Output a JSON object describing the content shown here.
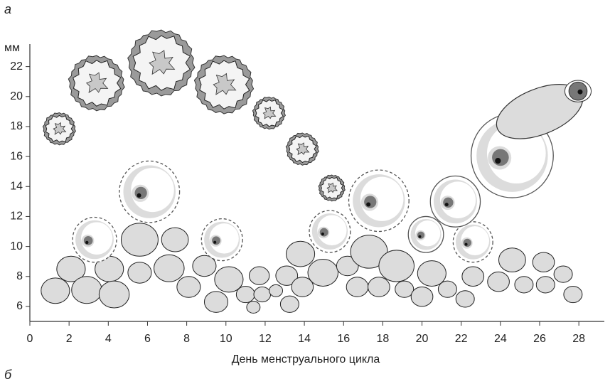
{
  "panel_top": "а",
  "panel_bottom": "б",
  "chart_data": {
    "type": "follicles",
    "ylabel": "мм",
    "xlabel": "День менструального цикла",
    "xlim": [
      0,
      29.3
    ],
    "ylim": [
      5,
      23.5
    ],
    "xticks": [
      0,
      2,
      4,
      6,
      8,
      10,
      12,
      14,
      16,
      18,
      20,
      22,
      24,
      26,
      28
    ],
    "yticks": [
      6,
      8,
      10,
      12,
      14,
      16,
      18,
      20,
      22
    ],
    "series": [
      {
        "shape": "small",
        "color": "#dcdcdc",
        "x": [
          1.3,
          2.1,
          2.9,
          4.05,
          4.3,
          5.6,
          5.6,
          7.1,
          7.4,
          8.1,
          8.9,
          9.5,
          10.15,
          11.0,
          11.7,
          11.85,
          11.4,
          12.55,
          13.1,
          13.25,
          13.9,
          13.8,
          14.95,
          16.2,
          16.7,
          17.3,
          17.8,
          18.7,
          19.1,
          20.0,
          20.5,
          21.3,
          22.2,
          22.6,
          23.9,
          24.6,
          25.2,
          26.2,
          26.3,
          27.2,
          27.7
        ],
        "values": [
          7.05,
          8.5,
          7.1,
          8.5,
          6.8,
          8.25,
          10.45,
          8.55,
          10.45,
          7.3,
          8.7,
          6.3,
          7.8,
          6.8,
          8.05,
          6.8,
          5.95,
          7.05,
          8.05,
          6.15,
          7.3,
          9.5,
          8.25,
          8.7,
          7.3,
          9.65,
          7.3,
          8.7,
          7.15,
          6.65,
          8.2,
          7.15,
          6.5,
          8.0,
          7.65,
          9.1,
          7.45,
          8.95,
          7.45,
          8.15,
          6.8
        ],
        "sizes": [
          1.7,
          1.7,
          1.8,
          1.7,
          1.8,
          1.4,
          2.2,
          1.8,
          1.6,
          1.4,
          1.4,
          1.4,
          1.7,
          1.1,
          1.2,
          1.0,
          0.8,
          0.8,
          1.3,
          1.1,
          1.3,
          1.7,
          1.8,
          1.3,
          1.3,
          2.2,
          1.3,
          2.1,
          1.1,
          1.3,
          1.7,
          1.1,
          1.1,
          1.3,
          1.3,
          1.6,
          1.1,
          1.3,
          1.1,
          1.1,
          1.1
        ]
      },
      {
        "shape": "antral-dashed",
        "color": "#dcdcdc",
        "x": [
          3.3,
          6.1,
          9.8,
          15.3,
          17.8,
          22.6
        ],
        "values": [
          10.45,
          13.65,
          10.45,
          11.0,
          13.05,
          10.3
        ],
        "sizes": [
          3.0,
          4.1,
          2.8,
          2.8,
          4.1,
          2.7
        ]
      },
      {
        "shape": "antral-solid",
        "color": "#dcdcdc",
        "x": [
          20.2,
          21.7,
          24.6
        ],
        "values": [
          10.8,
          13.0,
          16.05
        ],
        "sizes": [
          2.4,
          3.4,
          5.6
        ]
      },
      {
        "shape": "ovulation",
        "color": "#dcdcdc",
        "x": [
          26.0
        ],
        "values": [
          19.0
        ],
        "sizes": [
          3.2
        ]
      },
      {
        "shape": "luteum",
        "color": "#9a9a9a",
        "x": [
          1.5,
          3.4,
          6.7,
          9.9,
          12.2,
          13.9,
          15.4
        ],
        "values": [
          17.85,
          20.9,
          22.25,
          20.8,
          18.9,
          16.5,
          13.9
        ],
        "sizes": [
          2.1,
          3.6,
          4.3,
          3.8,
          2.1,
          2.1,
          1.7
        ]
      }
    ]
  }
}
